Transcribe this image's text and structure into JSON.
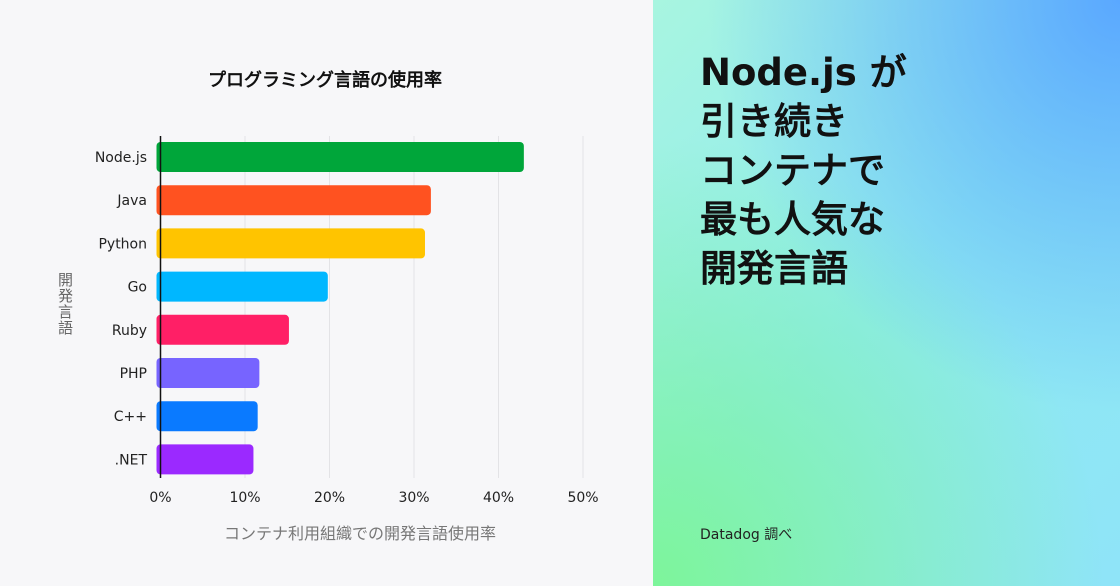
{
  "chart_data": {
    "type": "bar",
    "orientation": "horizontal",
    "title": "プログラミング言語の使用率",
    "xlabel": "コンテナ利用組織での開発言語使用率",
    "ylabel": "開発言語",
    "categories": [
      "Node.js",
      "Java",
      "Python",
      "Go",
      "Ruby",
      "PHP",
      "C++",
      ".NET"
    ],
    "values": [
      43.0,
      32.0,
      31.3,
      19.8,
      15.2,
      11.7,
      11.5,
      11.0
    ],
    "colors": [
      "#00a63a",
      "#ff5220",
      "#ffc400",
      "#00b7ff",
      "#ff1f66",
      "#7764ff",
      "#0a7aff",
      "#9b29ff"
    ],
    "xlim": [
      0,
      50
    ],
    "xticks": [
      "0%",
      "10%",
      "20%",
      "30%",
      "40%",
      "50%"
    ],
    "grid": true,
    "legend": "none"
  },
  "headline": [
    "Node.js が",
    "引き続き",
    "コンテナで",
    "最も人気な",
    "開発言語"
  ],
  "credit": "Datadog 調べ"
}
